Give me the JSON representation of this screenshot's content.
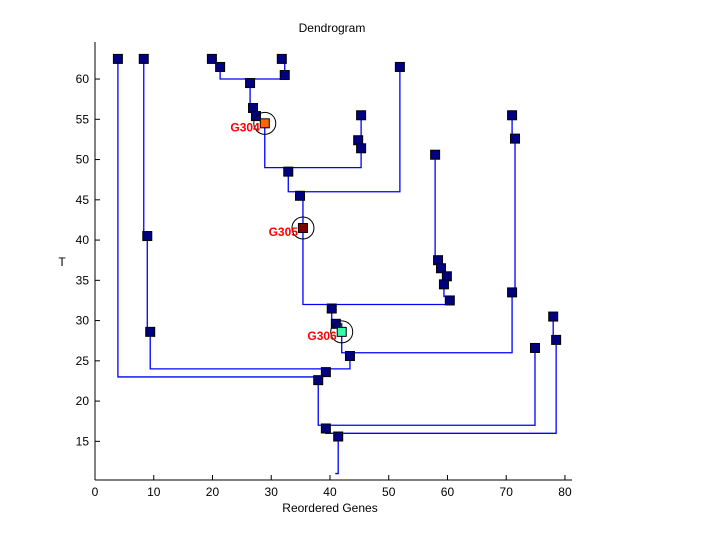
{
  "chart_data": {
    "type": "scatter",
    "title": "Dendrogram",
    "xlabel": "Reordered Genes",
    "ylabel": "T",
    "xlim": [
      0,
      81.2
    ],
    "ylim": [
      10.2,
      64.6
    ],
    "xticks": [
      0,
      10,
      20,
      30,
      40,
      50,
      60,
      70,
      80
    ],
    "yticks": [
      15,
      20,
      25,
      30,
      35,
      40,
      45,
      50,
      55,
      60
    ],
    "grid": false,
    "colors": {
      "line": "#0000ff",
      "node": "#000080",
      "highlight_label": "#ff0000"
    },
    "nodes": [
      [
        3.9,
        62.5
      ],
      [
        8.3,
        62.5
      ],
      [
        19.9,
        62.5
      ],
      [
        21.3,
        61.5
      ],
      [
        31.8,
        62.5
      ],
      [
        32.3,
        60.5
      ],
      [
        26.4,
        59.5
      ],
      [
        26.9,
        56.4
      ],
      [
        27.4,
        55.4
      ],
      [
        45.3,
        55.5
      ],
      [
        44.8,
        52.4
      ],
      [
        45.3,
        51.4
      ],
      [
        32.9,
        48.5
      ],
      [
        34.9,
        45.5
      ],
      [
        51.9,
        61.5
      ],
      [
        8.9,
        40.5
      ],
      [
        57.9,
        50.6
      ],
      [
        58.4,
        37.5
      ],
      [
        58.9,
        36.5
      ],
      [
        59.9,
        35.5
      ],
      [
        59.4,
        34.5
      ],
      [
        60.4,
        32.5
      ],
      [
        71.0,
        55.5
      ],
      [
        71.5,
        52.6
      ],
      [
        71.0,
        33.5
      ],
      [
        40.3,
        31.5
      ],
      [
        41.0,
        29.6
      ],
      [
        9.4,
        28.6
      ],
      [
        43.4,
        25.6
      ],
      [
        39.3,
        23.6
      ],
      [
        38.0,
        22.6
      ],
      [
        78.0,
        30.5
      ],
      [
        78.5,
        27.6
      ],
      [
        74.9,
        26.6
      ],
      [
        39.3,
        16.6
      ],
      [
        41.4,
        15.6
      ]
    ],
    "highlighted": [
      {
        "label": "G304",
        "x": 28.9,
        "y": 54.5,
        "color": "#ff6600"
      },
      {
        "label": "G305",
        "x": 35.4,
        "y": 41.5,
        "color": "#800000"
      },
      {
        "label": "G306",
        "x": 42.0,
        "y": 28.6,
        "color": "#33ffaa"
      }
    ],
    "edges": [
      [
        [
          3.9,
          62.5
        ],
        [
          3.9,
          23
        ],
        [
          38,
          23
        ]
      ],
      [
        [
          8.3,
          62.5
        ],
        [
          8.3,
          40.5
        ],
        [
          8.9,
          40.5
        ],
        [
          8.9,
          28.6
        ],
        [
          9.4,
          28.6
        ],
        [
          9.4,
          24
        ],
        [
          43.4,
          24
        ],
        [
          43.4,
          25.6
        ]
      ],
      [
        [
          19.9,
          62.5
        ],
        [
          19.9,
          62
        ],
        [
          21.3,
          62
        ],
        [
          21.3,
          60
        ],
        [
          32.3,
          60
        ],
        [
          32.3,
          62.5
        ]
      ],
      [
        [
          26.4,
          60
        ],
        [
          26.4,
          56.4
        ],
        [
          26.9,
          56.4
        ],
        [
          26.9,
          55
        ],
        [
          28.9,
          55
        ],
        [
          28.9,
          49
        ],
        [
          45.3,
          49
        ],
        [
          45.3,
          52
        ],
        [
          44.8,
          52
        ],
        [
          44.8,
          52.4
        ]
      ],
      [
        [
          45.3,
          52
        ],
        [
          45.3,
          55.5
        ]
      ],
      [
        [
          32.9,
          49
        ],
        [
          32.9,
          46
        ],
        [
          51.9,
          46
        ],
        [
          51.9,
          61.5
        ]
      ],
      [
        [
          34.9,
          46
        ],
        [
          34.9,
          45.5
        ],
        [
          35.4,
          45.5
        ],
        [
          35.4,
          32
        ],
        [
          60.4,
          32
        ],
        [
          60.4,
          33
        ],
        [
          59.4,
          33
        ],
        [
          59.4,
          35
        ],
        [
          59.9,
          35
        ],
        [
          59.9,
          36
        ],
        [
          58.9,
          36
        ],
        [
          58.9,
          37
        ],
        [
          57.9,
          37
        ],
        [
          57.9,
          50.6
        ]
      ],
      [
        [
          40.3,
          32
        ],
        [
          40.3,
          29.6
        ],
        [
          42,
          29.6
        ],
        [
          42,
          26
        ],
        [
          71,
          26
        ],
        [
          71,
          33.5
        ],
        [
          71.5,
          33.5
        ],
        [
          71.5,
          53
        ],
        [
          71,
          53
        ],
        [
          71,
          55.5
        ]
      ],
      [
        [
          38,
          23
        ],
        [
          38,
          17
        ],
        [
          74.9,
          17
        ],
        [
          74.9,
          26.6
        ]
      ],
      [
        [
          39.3,
          24
        ],
        [
          39.3,
          23.6
        ]
      ],
      [
        [
          39.3,
          17
        ],
        [
          39.3,
          16
        ],
        [
          78.5,
          16
        ],
        [
          78.5,
          28
        ],
        [
          78,
          28
        ],
        [
          78,
          30.5
        ]
      ],
      [
        [
          41.4,
          16
        ],
        [
          41.4,
          11
        ],
        [
          40.9,
          11
        ]
      ]
    ]
  }
}
